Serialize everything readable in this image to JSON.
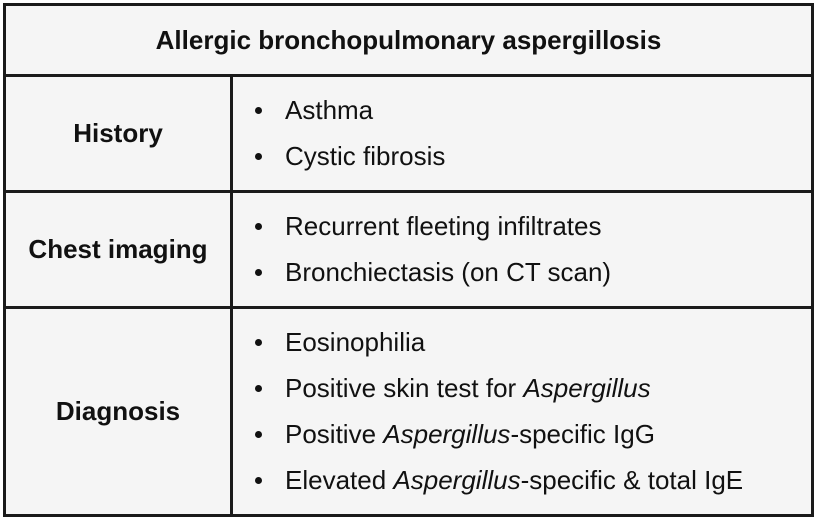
{
  "title": "Allergic bronchopulmonary aspergillosis",
  "rows": [
    {
      "label": "History",
      "items": [
        {
          "parts": [
            {
              "text": "Asthma",
              "italic": false
            }
          ]
        },
        {
          "parts": [
            {
              "text": "Cystic fibrosis",
              "italic": false
            }
          ]
        }
      ]
    },
    {
      "label": "Chest imaging",
      "items": [
        {
          "parts": [
            {
              "text": "Recurrent fleeting infiltrates",
              "italic": false
            }
          ]
        },
        {
          "parts": [
            {
              "text": "Bronchiectasis (on CT scan)",
              "italic": false
            }
          ]
        }
      ]
    },
    {
      "label": "Diagnosis",
      "items": [
        {
          "parts": [
            {
              "text": "Eosinophilia",
              "italic": false
            }
          ]
        },
        {
          "parts": [
            {
              "text": "Positive skin test for ",
              "italic": false
            },
            {
              "text": "Aspergillus",
              "italic": true
            }
          ]
        },
        {
          "parts": [
            {
              "text": "Positive ",
              "italic": false
            },
            {
              "text": "Aspergillus",
              "italic": true
            },
            {
              "text": "-specific IgG",
              "italic": false
            }
          ]
        },
        {
          "parts": [
            {
              "text": "Elevated ",
              "italic": false
            },
            {
              "text": "Aspergillus",
              "italic": true
            },
            {
              "text": "-specific & total IgE",
              "italic": false
            }
          ]
        }
      ]
    }
  ]
}
